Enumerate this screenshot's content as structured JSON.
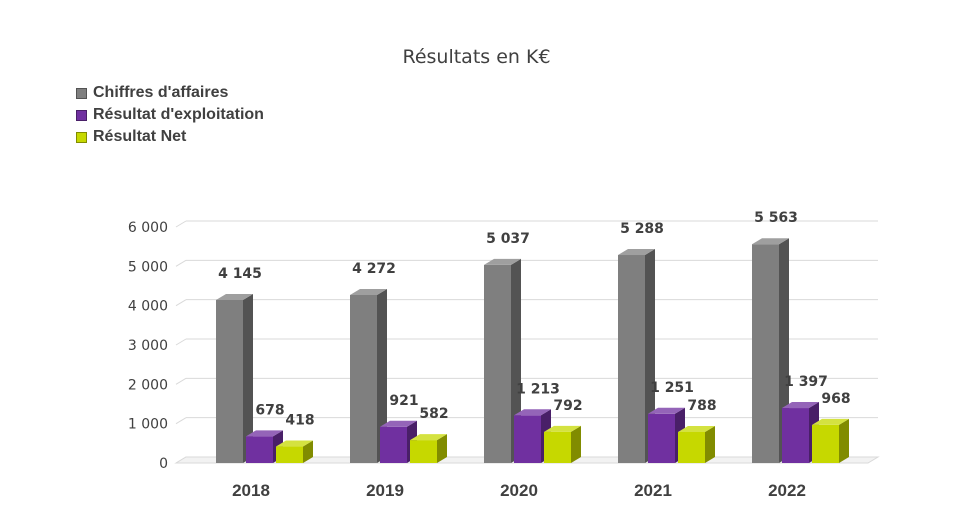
{
  "chart_data": {
    "type": "bar",
    "title": "Résultats en K€",
    "categories": [
      "2018",
      "2019",
      "2020",
      "2021",
      "2022"
    ],
    "series": [
      {
        "name": "Chiffres d'affaires",
        "color": "#7f7f7f",
        "values": [
          4145,
          4272,
          5037,
          5288,
          5563
        ],
        "labels": [
          "4 145",
          "4 272",
          "5 037",
          "5 288",
          "5 563"
        ]
      },
      {
        "name": "Résultat d'exploitation",
        "color": "#7030a0",
        "values": [
          678,
          921,
          1213,
          1251,
          1397
        ],
        "labels": [
          "678",
          "921",
          "1 213",
          "1 251",
          "1 397"
        ]
      },
      {
        "name": "Résultat Net",
        "color": "#c6d800",
        "values": [
          418,
          582,
          792,
          788,
          968
        ],
        "labels": [
          "418",
          "582",
          "792",
          "788",
          "968"
        ]
      }
    ],
    "yticks": [
      "0",
      "1 000",
      "2 000",
      "3 000",
      "4 000",
      "5 000",
      "6 000"
    ],
    "ylim": [
      0,
      6000
    ],
    "grid": true,
    "legend_position": "top-left",
    "chart_style": "3d-clustered-column"
  }
}
